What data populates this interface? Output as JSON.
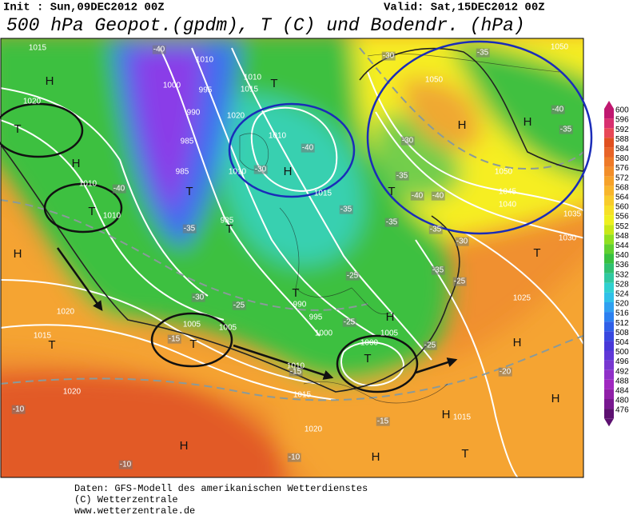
{
  "header": {
    "init": "Init : Sun,09DEC2012 00Z",
    "valid": "Valid: Sat,15DEC2012 00Z",
    "title": "500 hPa Geopot.(gpdm), T (C) und Bodendr. (hPa)"
  },
  "map": {
    "pressure_centers": [
      "H",
      "H",
      "H",
      "H",
      "H",
      "H",
      "H",
      "H",
      "H",
      "H",
      "H",
      "H",
      "T",
      "T",
      "T",
      "T",
      "T",
      "T",
      "T",
      "T",
      "T",
      "T",
      "T",
      "T"
    ],
    "isobar_labels": [
      "1015",
      "1020",
      "1010",
      "1000",
      "995",
      "990",
      "985",
      "985",
      "1010",
      "1015",
      "1020",
      "1010",
      "1010",
      "1015",
      "1010",
      "1010",
      "985",
      "1020",
      "1005",
      "1005",
      "1015",
      "990",
      "995",
      "1000",
      "1005",
      "1000",
      "1010",
      "1015",
      "1020",
      "1020",
      "1015",
      "1050",
      "1050",
      "1045",
      "1040",
      "1030",
      "1025",
      "1035",
      "1050"
    ],
    "temperature_labels": [
      "-40",
      "-40",
      "-30",
      "-30",
      "-35",
      "-40",
      "-35",
      "-35",
      "-40",
      "-40",
      "-35",
      "-35",
      "-35",
      "-35",
      "-40",
      "-30",
      "-35",
      "-25",
      "-25",
      "-30",
      "-25",
      "-25",
      "-25",
      "-20",
      "-15",
      "-15",
      "-15",
      "-10",
      "-10",
      "-10",
      "-30"
    ]
  },
  "colorbar": {
    "labels": [
      600,
      596,
      592,
      588,
      584,
      580,
      576,
      572,
      568,
      564,
      560,
      556,
      552,
      548,
      544,
      540,
      536,
      532,
      528,
      524,
      520,
      516,
      512,
      508,
      504,
      500,
      496,
      492,
      488,
      484,
      480,
      476
    ]
  },
  "footer": {
    "lines": [
      "Daten: GFS-Modell des amerikanischen Wetterdienstes",
      "(C) Wetterzentrale",
      "www.wetterzentrale.de"
    ]
  }
}
